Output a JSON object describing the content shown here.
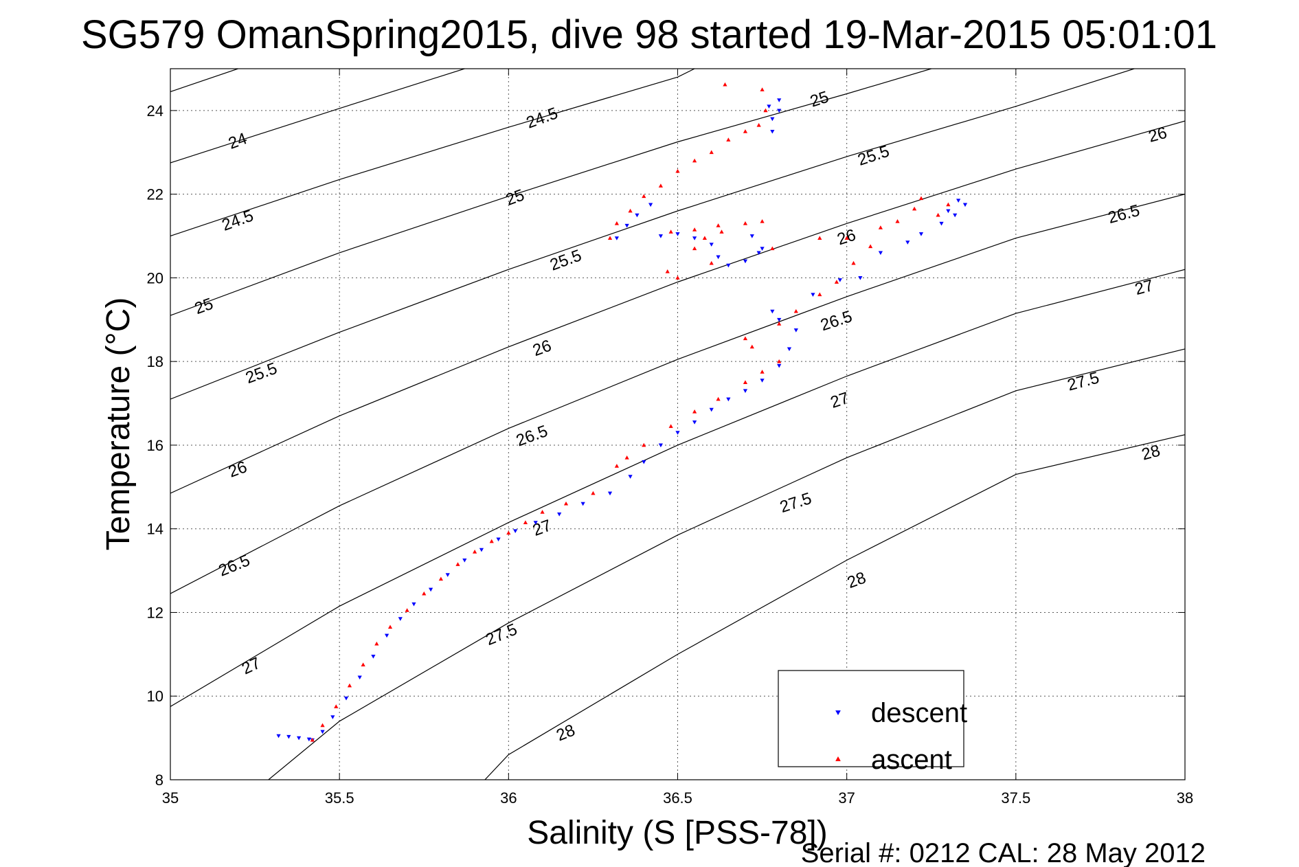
{
  "chart_data": {
    "type": "scatter",
    "title": "SG579 OmanSpring2015, dive 98 started 19-Mar-2015 05:01:01",
    "xlabel": "Salinity (S [PSS-78])",
    "ylabel": "Temperature (°C)",
    "footer": "Serial #: 0212  CAL: 28 May 2012",
    "xlim": [
      35,
      38
    ],
    "ylim": [
      8,
      25
    ],
    "xticks": [
      35,
      35.5,
      36,
      36.5,
      37,
      37.5,
      38
    ],
    "xtick_labels": [
      "35",
      "35.5",
      "36",
      "36.5",
      "37",
      "37.5",
      "38"
    ],
    "yticks": [
      8,
      10,
      12,
      14,
      16,
      18,
      20,
      22,
      24
    ],
    "ytick_labels": [
      "8",
      "10",
      "12",
      "14",
      "16",
      "18",
      "20",
      "22",
      "24"
    ],
    "grid": "dotted",
    "legend": {
      "placement": "bottom-right",
      "entries": [
        "descent",
        "ascent"
      ]
    },
    "colors": {
      "descent": "#0000ff",
      "ascent": "#ff0000",
      "contour": "#000000"
    },
    "density_contours": {
      "levels": [
        24,
        24.5,
        25,
        25.5,
        26,
        26.5,
        27,
        27.5,
        28
      ],
      "lines": [
        {
          "level": 24,
          "points": [
            [
              35.0,
              24.45
            ],
            [
              35.2,
              25.0
            ]
          ]
        },
        {
          "level": 24,
          "points": [
            [
              35.0,
              22.75
            ],
            [
              35.5,
              24.05
            ],
            [
              35.87,
              25.0
            ]
          ]
        },
        {
          "level": 24.5,
          "points": [
            [
              35.0,
              21.0
            ],
            [
              35.5,
              22.35
            ],
            [
              36.0,
              23.6
            ],
            [
              36.5,
              24.8
            ],
            [
              36.55,
              25.0
            ]
          ]
        },
        {
          "level": 25,
          "points": [
            [
              35.0,
              19.1
            ],
            [
              35.5,
              20.6
            ],
            [
              36.0,
              21.95
            ],
            [
              36.5,
              23.25
            ],
            [
              37.0,
              24.4
            ],
            [
              37.25,
              25.0
            ]
          ]
        },
        {
          "level": 25.5,
          "points": [
            [
              35.0,
              17.1
            ],
            [
              35.5,
              18.7
            ],
            [
              36.0,
              20.2
            ],
            [
              36.5,
              21.6
            ],
            [
              37.0,
              22.9
            ],
            [
              37.5,
              24.1
            ],
            [
              37.85,
              25.0
            ]
          ]
        },
        {
          "level": 26,
          "points": [
            [
              35.0,
              14.85
            ],
            [
              35.5,
              16.7
            ],
            [
              36.0,
              18.35
            ],
            [
              36.5,
              19.9
            ],
            [
              37.0,
              21.3
            ],
            [
              37.5,
              22.6
            ],
            [
              38.0,
              23.75
            ]
          ]
        },
        {
          "level": 26.5,
          "points": [
            [
              35.0,
              12.45
            ],
            [
              35.5,
              14.55
            ],
            [
              36.0,
              16.4
            ],
            [
              36.5,
              18.05
            ],
            [
              37.0,
              19.55
            ],
            [
              37.5,
              20.95
            ],
            [
              38.0,
              22.0
            ]
          ]
        },
        {
          "level": 27,
          "points": [
            [
              35.0,
              9.75
            ],
            [
              35.5,
              12.15
            ],
            [
              36.0,
              14.15
            ],
            [
              36.5,
              16.0
            ],
            [
              37.0,
              17.65
            ],
            [
              37.5,
              19.15
            ],
            [
              38.0,
              20.2
            ]
          ]
        },
        {
          "level": 27.5,
          "points": [
            [
              35.29,
              8.0
            ],
            [
              35.5,
              9.4
            ],
            [
              36.0,
              11.75
            ],
            [
              36.5,
              13.85
            ],
            [
              37.0,
              15.7
            ],
            [
              37.5,
              17.3
            ],
            [
              38.0,
              18.3
            ]
          ]
        },
        {
          "level": 28,
          "points": [
            [
              35.93,
              8.0
            ],
            [
              36.0,
              8.6
            ],
            [
              36.5,
              11.0
            ],
            [
              37.0,
              13.25
            ],
            [
              37.5,
              15.3
            ],
            [
              38.0,
              16.25
            ]
          ]
        }
      ],
      "labels": [
        {
          "text": "24",
          "x": 35.2,
          "y": 23.25,
          "angle": -20
        },
        {
          "text": "24.5",
          "x": 36.1,
          "y": 23.8,
          "angle": -20
        },
        {
          "text": "24.5",
          "x": 35.2,
          "y": 21.35,
          "angle": -20
        },
        {
          "text": "25",
          "x": 36.02,
          "y": 21.9,
          "angle": -20
        },
        {
          "text": "25",
          "x": 36.92,
          "y": 24.25,
          "angle": -18
        },
        {
          "text": "25",
          "x": 35.1,
          "y": 19.3,
          "angle": -20
        },
        {
          "text": "25.5",
          "x": 36.17,
          "y": 20.4,
          "angle": -20
        },
        {
          "text": "25.5",
          "x": 37.08,
          "y": 22.9,
          "angle": -18
        },
        {
          "text": "25.5",
          "x": 35.27,
          "y": 17.7,
          "angle": -20
        },
        {
          "text": "26",
          "x": 36.1,
          "y": 18.3,
          "angle": -20
        },
        {
          "text": "26",
          "x": 37.0,
          "y": 20.95,
          "angle": -18
        },
        {
          "text": "26",
          "x": 37.92,
          "y": 23.4,
          "angle": -15
        },
        {
          "text": "26",
          "x": 35.2,
          "y": 15.4,
          "angle": -20
        },
        {
          "text": "26.5",
          "x": 36.07,
          "y": 16.2,
          "angle": -20
        },
        {
          "text": "26.5",
          "x": 36.97,
          "y": 18.95,
          "angle": -18
        },
        {
          "text": "26.5",
          "x": 37.82,
          "y": 21.5,
          "angle": -15
        },
        {
          "text": "26.5",
          "x": 35.19,
          "y": 13.1,
          "angle": -22
        },
        {
          "text": "27",
          "x": 36.1,
          "y": 14.0,
          "angle": -20
        },
        {
          "text": "27",
          "x": 36.98,
          "y": 17.05,
          "angle": -18
        },
        {
          "text": "27",
          "x": 37.88,
          "y": 19.75,
          "angle": -15
        },
        {
          "text": "27",
          "x": 35.24,
          "y": 10.7,
          "angle": -25
        },
        {
          "text": "27.5",
          "x": 35.98,
          "y": 11.45,
          "angle": -22
        },
        {
          "text": "27.5",
          "x": 36.85,
          "y": 14.6,
          "angle": -18
        },
        {
          "text": "27.5",
          "x": 37.7,
          "y": 17.5,
          "angle": -15
        },
        {
          "text": "28",
          "x": 36.17,
          "y": 9.1,
          "angle": -22
        },
        {
          "text": "28",
          "x": 37.03,
          "y": 12.75,
          "angle": -20
        },
        {
          "text": "28",
          "x": 37.9,
          "y": 15.8,
          "angle": -15
        }
      ]
    },
    "series": [
      {
        "name": "descent",
        "marker": "triangle-down",
        "points": [
          [
            35.32,
            9.05
          ],
          [
            35.35,
            9.03
          ],
          [
            35.38,
            9.0
          ],
          [
            35.41,
            8.97
          ],
          [
            35.42,
            8.95
          ],
          [
            35.45,
            9.15
          ],
          [
            35.48,
            9.5
          ],
          [
            35.52,
            9.95
          ],
          [
            35.56,
            10.45
          ],
          [
            35.6,
            10.95
          ],
          [
            35.64,
            11.45
          ],
          [
            35.68,
            11.85
          ],
          [
            35.72,
            12.2
          ],
          [
            35.77,
            12.55
          ],
          [
            35.82,
            12.9
          ],
          [
            35.87,
            13.25
          ],
          [
            35.92,
            13.5
          ],
          [
            35.97,
            13.75
          ],
          [
            36.02,
            13.95
          ],
          [
            36.08,
            14.15
          ],
          [
            36.15,
            14.35
          ],
          [
            36.22,
            14.6
          ],
          [
            36.3,
            14.85
          ],
          [
            36.36,
            15.25
          ],
          [
            36.4,
            15.6
          ],
          [
            36.45,
            16.0
          ],
          [
            36.5,
            16.3
          ],
          [
            36.55,
            16.55
          ],
          [
            36.6,
            16.85
          ],
          [
            36.65,
            17.1
          ],
          [
            36.7,
            17.3
          ],
          [
            36.75,
            17.55
          ],
          [
            36.8,
            17.9
          ],
          [
            36.83,
            18.3
          ],
          [
            36.85,
            18.75
          ],
          [
            36.8,
            19.0
          ],
          [
            36.78,
            19.2
          ],
          [
            36.9,
            19.6
          ],
          [
            36.98,
            19.95
          ],
          [
            37.04,
            20.0
          ],
          [
            37.1,
            20.6
          ],
          [
            37.18,
            20.85
          ],
          [
            37.22,
            21.05
          ],
          [
            37.28,
            21.3
          ],
          [
            37.32,
            21.5
          ],
          [
            37.35,
            21.75
          ],
          [
            37.33,
            21.85
          ],
          [
            37.3,
            21.6
          ],
          [
            36.32,
            20.95
          ],
          [
            36.35,
            21.25
          ],
          [
            36.38,
            21.5
          ],
          [
            36.42,
            21.75
          ],
          [
            36.45,
            21.0
          ],
          [
            36.5,
            21.05
          ],
          [
            36.55,
            20.95
          ],
          [
            36.6,
            20.8
          ],
          [
            36.62,
            20.5
          ],
          [
            36.65,
            20.3
          ],
          [
            36.7,
            20.4
          ],
          [
            36.74,
            20.6
          ],
          [
            36.72,
            21.0
          ],
          [
            36.75,
            20.7
          ],
          [
            36.78,
            23.8
          ],
          [
            36.8,
            24.0
          ],
          [
            36.8,
            24.25
          ],
          [
            36.77,
            24.1
          ],
          [
            36.78,
            23.5
          ]
        ]
      },
      {
        "name": "ascent",
        "marker": "triangle-up",
        "points": [
          [
            35.42,
            8.95
          ],
          [
            35.45,
            9.3
          ],
          [
            35.49,
            9.75
          ],
          [
            35.53,
            10.25
          ],
          [
            35.57,
            10.75
          ],
          [
            35.61,
            11.25
          ],
          [
            35.65,
            11.65
          ],
          [
            35.7,
            12.05
          ],
          [
            35.75,
            12.45
          ],
          [
            35.8,
            12.8
          ],
          [
            35.85,
            13.15
          ],
          [
            35.9,
            13.45
          ],
          [
            35.95,
            13.7
          ],
          [
            36.0,
            13.9
          ],
          [
            36.05,
            14.15
          ],
          [
            36.1,
            14.4
          ],
          [
            36.17,
            14.6
          ],
          [
            36.25,
            14.85
          ],
          [
            36.32,
            15.5
          ],
          [
            36.35,
            15.7
          ],
          [
            36.4,
            16.0
          ],
          [
            36.48,
            16.45
          ],
          [
            36.55,
            16.8
          ],
          [
            36.62,
            17.1
          ],
          [
            36.7,
            17.5
          ],
          [
            36.75,
            17.75
          ],
          [
            36.8,
            18.0
          ],
          [
            36.72,
            18.35
          ],
          [
            36.7,
            18.55
          ],
          [
            36.8,
            18.9
          ],
          [
            36.85,
            19.2
          ],
          [
            36.92,
            19.6
          ],
          [
            36.97,
            19.9
          ],
          [
            37.02,
            20.35
          ],
          [
            37.07,
            20.75
          ],
          [
            37.1,
            21.2
          ],
          [
            37.15,
            21.35
          ],
          [
            37.2,
            21.65
          ],
          [
            37.22,
            21.9
          ],
          [
            37.27,
            21.5
          ],
          [
            37.3,
            21.75
          ],
          [
            37.0,
            20.95
          ],
          [
            36.92,
            20.95
          ],
          [
            36.3,
            20.95
          ],
          [
            36.32,
            21.3
          ],
          [
            36.36,
            21.6
          ],
          [
            36.4,
            21.95
          ],
          [
            36.45,
            22.2
          ],
          [
            36.5,
            22.55
          ],
          [
            36.55,
            22.8
          ],
          [
            36.6,
            23.0
          ],
          [
            36.65,
            23.3
          ],
          [
            36.7,
            23.5
          ],
          [
            36.74,
            23.65
          ],
          [
            36.76,
            24.0
          ],
          [
            36.75,
            24.5
          ],
          [
            36.64,
            24.62
          ],
          [
            36.48,
            21.1
          ],
          [
            36.55,
            21.15
          ],
          [
            36.62,
            21.25
          ],
          [
            36.7,
            21.3
          ],
          [
            36.75,
            21.35
          ],
          [
            36.63,
            21.1
          ],
          [
            36.58,
            20.95
          ],
          [
            36.47,
            20.15
          ],
          [
            36.5,
            20.0
          ],
          [
            36.55,
            20.7
          ],
          [
            36.6,
            20.35
          ],
          [
            36.78,
            20.7
          ]
        ]
      }
    ]
  }
}
